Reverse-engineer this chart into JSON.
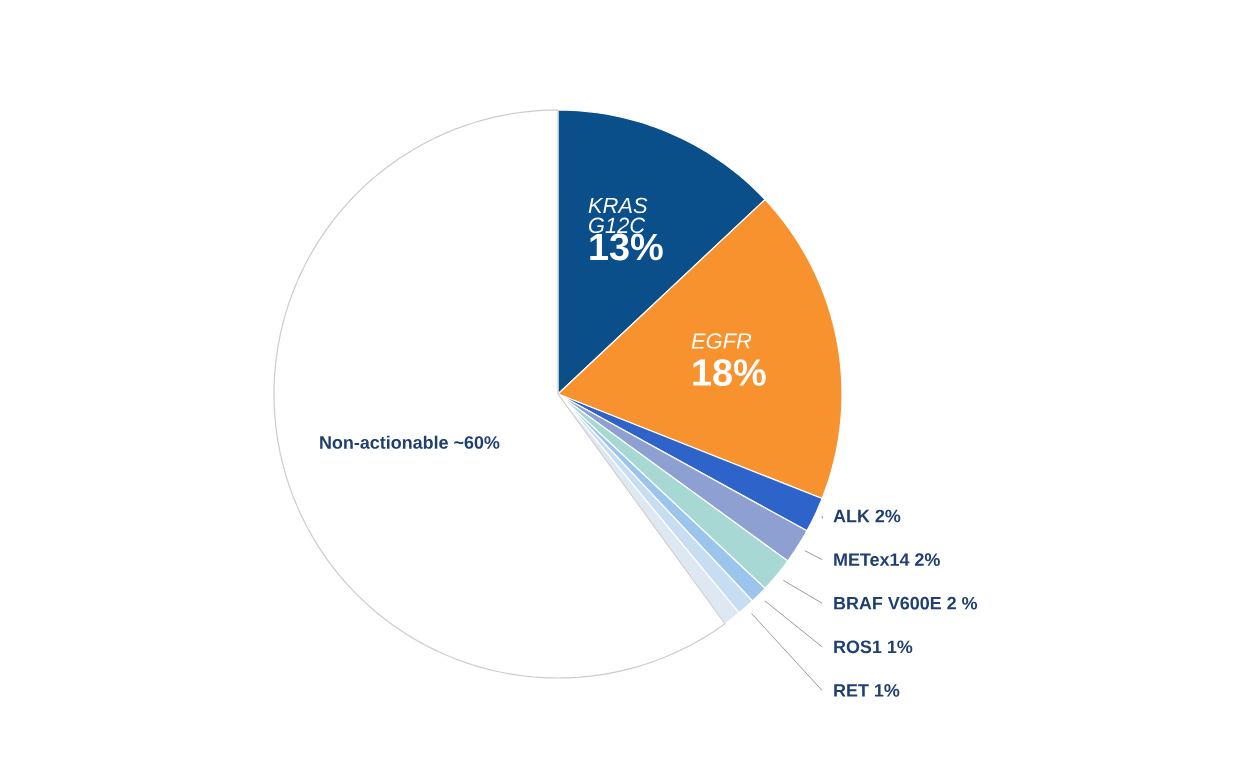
{
  "chart_data": {
    "type": "pie",
    "categories": [
      "KRAS G12C",
      "EGFR",
      "ALK",
      "METex14",
      "BRAF V600E",
      "ROS1",
      "RET",
      null,
      "Non-actionable"
    ],
    "values": [
      13,
      18,
      2,
      2,
      2,
      1,
      1,
      1,
      60
    ],
    "value_labels": [
      "13%",
      "18%",
      "2%",
      "2%",
      "2 %",
      "1%",
      "1%",
      null,
      "~60%"
    ],
    "colors": [
      "#0b4f8a",
      "#f7922e",
      "#2e63c9",
      "#8e9fd2",
      "#a7d8d3",
      "#9cc5ee",
      "#c7ddf1",
      "#dde8f3",
      "#ffffff"
    ],
    "legend": false
  }
}
